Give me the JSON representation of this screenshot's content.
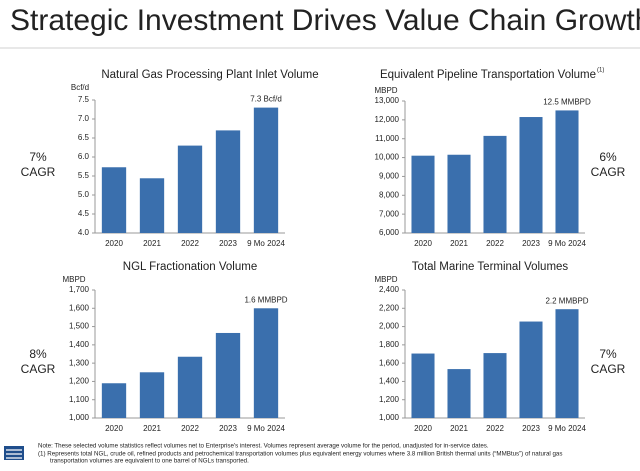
{
  "title": "Strategic Investment Drives Value Chain Growth",
  "notes": [
    "Note:  These selected volume statistics reflect volumes net to Enterprise's interest. Volumes represent average volume for the period, unadjusted for in-service dates.",
    "(1)  Represents total NGL, crude oil, refined products and petrochemical transportation volumes plus equivalent energy volumes where 3.8 million British thermal units (“MMBtus”) of natural gas",
    "transportation volumes are equivalent to one barrel of NGLs transported."
  ],
  "chart_data": [
    {
      "type": "bar",
      "title": "Natural Gas Processing Plant Inlet Volume",
      "y_label": "Bcf/d",
      "categories": [
        "2020",
        "2021",
        "2022",
        "2023",
        "9 Mo 2024"
      ],
      "values": [
        5.73,
        5.44,
        6.3,
        6.7,
        7.3
      ],
      "value_labels": [
        null,
        null,
        null,
        null,
        "7.3  Bcf/d"
      ],
      "color": "#3a6fad",
      "ylim": [
        4.0,
        7.5
      ],
      "yticks": [
        {
          "value": 4,
          "label": "4.0"
        },
        4.5,
        {
          "value": 5,
          "label": "5.0"
        },
        5.5,
        {
          "value": 6,
          "label": "6.0"
        },
        6.5,
        {
          "value": 7,
          "label": "7.0"
        },
        7.5
      ],
      "annotation": [
        "7%",
        "CAGR"
      ]
    },
    {
      "type": "bar",
      "title": "Equivalent Pipeline Transportation Volume",
      "title_note": "(1)",
      "y_label": "MBPD",
      "categories": [
        "2020",
        "2021",
        "2022",
        "2023",
        "9 Mo 2024"
      ],
      "values": [
        10100,
        10150,
        11150,
        12150,
        12500
      ],
      "value_labels": [
        null,
        null,
        null,
        null,
        "12.5 MMBPD"
      ],
      "color": "#3a6fad",
      "ylim": [
        6000,
        13000
      ],
      "yticks": [
        {
          "value": 6000,
          "label": "6,000"
        },
        {
          "value": 7000,
          "label": "7,000"
        },
        {
          "value": 8000,
          "label": "8,000"
        },
        {
          "value": 9000,
          "label": "9,000"
        },
        {
          "value": 10000,
          "label": "10,000"
        },
        {
          "value": 11000,
          "label": "11,000"
        },
        {
          "value": 12000,
          "label": "12,000"
        },
        {
          "value": 13000,
          "label": "13,000"
        }
      ],
      "annotation": [
        "6%",
        "CAGR"
      ]
    },
    {
      "type": "bar",
      "title": "NGL Fractionation Volume",
      "y_label": "MBPD",
      "categories": [
        "2020",
        "2021",
        "2022",
        "2023",
        "9 Mo 2024"
      ],
      "values": [
        1190,
        1250,
        1335,
        1465,
        1600
      ],
      "value_labels": [
        null,
        null,
        null,
        null,
        "1.6 MMBPD"
      ],
      "color": "#3a6fad",
      "ylim": [
        1000,
        1700
      ],
      "yticks": [
        {
          "value": 1000,
          "label": "1,000"
        },
        {
          "value": 1100,
          "label": "1,100"
        },
        {
          "value": 1200,
          "label": "1,200"
        },
        {
          "value": 1300,
          "label": "1,300"
        },
        {
          "value": 1400,
          "label": "1,400"
        },
        {
          "value": 1500,
          "label": "1,500"
        },
        {
          "value": 1600,
          "label": "1,600"
        },
        {
          "value": 1700,
          "label": "1,700"
        }
      ],
      "annotation": [
        "8%",
        "CAGR"
      ]
    },
    {
      "type": "bar",
      "title": "Total Marine Terminal Volumes",
      "y_label": "MBPD",
      "categories": [
        "2020",
        "2021",
        "2022",
        "2023",
        "9 Mo 2024"
      ],
      "values": [
        1705,
        1535,
        1710,
        2055,
        2190
      ],
      "value_labels": [
        null,
        null,
        null,
        null,
        "2.2 MMBPD"
      ],
      "color": "#3a6fad",
      "ylim": [
        1000,
        2400
      ],
      "yticks": [
        {
          "value": 1000,
          "label": "1,000"
        },
        {
          "value": 1200,
          "label": "1,200"
        },
        {
          "value": 1400,
          "label": "1,400"
        },
        {
          "value": 1600,
          "label": "1,600"
        },
        {
          "value": 1800,
          "label": "1,800"
        },
        {
          "value": 2000,
          "label": "2,000"
        },
        {
          "value": 2200,
          "label": "2,200"
        },
        {
          "value": 2400,
          "label": "2,400"
        }
      ],
      "annotation": [
        "7%",
        "CAGR"
      ]
    }
  ]
}
